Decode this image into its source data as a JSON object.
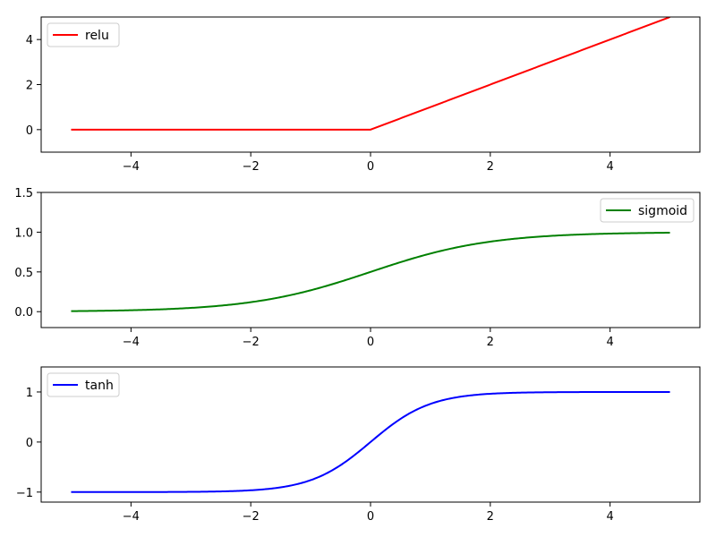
{
  "chart_data": [
    {
      "type": "line",
      "function": "relu",
      "xlim": [
        -5.5,
        5.5
      ],
      "ylim": [
        -1,
        5
      ],
      "x_range": [
        -5,
        5
      ],
      "xticks": [
        -4,
        -2,
        0,
        2,
        4
      ],
      "xtick_labels": [
        "−4",
        "−2",
        "0",
        "2",
        "4"
      ],
      "yticks": [
        0,
        2,
        4
      ],
      "ytick_labels": [
        "0",
        "2",
        "4"
      ],
      "series": [
        {
          "name": "relu",
          "color": "#ff0000",
          "x": [
            -5,
            -4,
            -3,
            -2,
            -1,
            0,
            1,
            2,
            3,
            4,
            5
          ],
          "y": [
            0,
            0,
            0,
            0,
            0,
            0,
            1,
            2,
            3,
            4,
            5
          ]
        }
      ],
      "legend": "upper-left",
      "grid": false,
      "title": "",
      "xlabel": "",
      "ylabel": ""
    },
    {
      "type": "line",
      "function": "sigmoid",
      "xlim": [
        -5.5,
        5.5
      ],
      "ylim": [
        -0.2,
        1.5
      ],
      "x_range": [
        -5,
        5
      ],
      "xticks": [
        -4,
        -2,
        0,
        2,
        4
      ],
      "xtick_labels": [
        "−4",
        "−2",
        "0",
        "2",
        "4"
      ],
      "yticks": [
        0,
        0.5,
        1,
        1.5
      ],
      "ytick_labels": [
        "0.0",
        "0.5",
        "1.0",
        "1.5"
      ],
      "series": [
        {
          "name": "sigmoid",
          "color": "#008000",
          "x": [
            -5,
            -4,
            -3,
            -2,
            -1,
            0,
            1,
            2,
            3,
            4,
            5
          ],
          "y": [
            0.0067,
            0.018,
            0.0474,
            0.1192,
            0.2689,
            0.5,
            0.7311,
            0.8808,
            0.9526,
            0.982,
            0.9933
          ]
        }
      ],
      "legend": "upper-right",
      "grid": false,
      "title": "",
      "xlabel": "",
      "ylabel": ""
    },
    {
      "type": "line",
      "function": "tanh",
      "xlim": [
        -5.5,
        5.5
      ],
      "ylim": [
        -1.2,
        1.5
      ],
      "x_range": [
        -5,
        5
      ],
      "xticks": [
        -4,
        -2,
        0,
        2,
        4
      ],
      "xtick_labels": [
        "−4",
        "−2",
        "0",
        "2",
        "4"
      ],
      "yticks": [
        -1,
        0,
        1
      ],
      "ytick_labels": [
        "−1",
        "0",
        "1"
      ],
      "series": [
        {
          "name": "tanh",
          "color": "#0000ff",
          "x": [
            -5,
            -4,
            -3,
            -2,
            -1,
            0,
            1,
            2,
            3,
            4,
            5
          ],
          "y": [
            -0.9999,
            -0.9993,
            -0.9951,
            -0.964,
            -0.7616,
            0,
            0.7616,
            0.964,
            0.9951,
            0.9993,
            0.9999
          ]
        }
      ],
      "legend": "upper-left",
      "grid": false,
      "title": "",
      "xlabel": "",
      "ylabel": ""
    }
  ]
}
